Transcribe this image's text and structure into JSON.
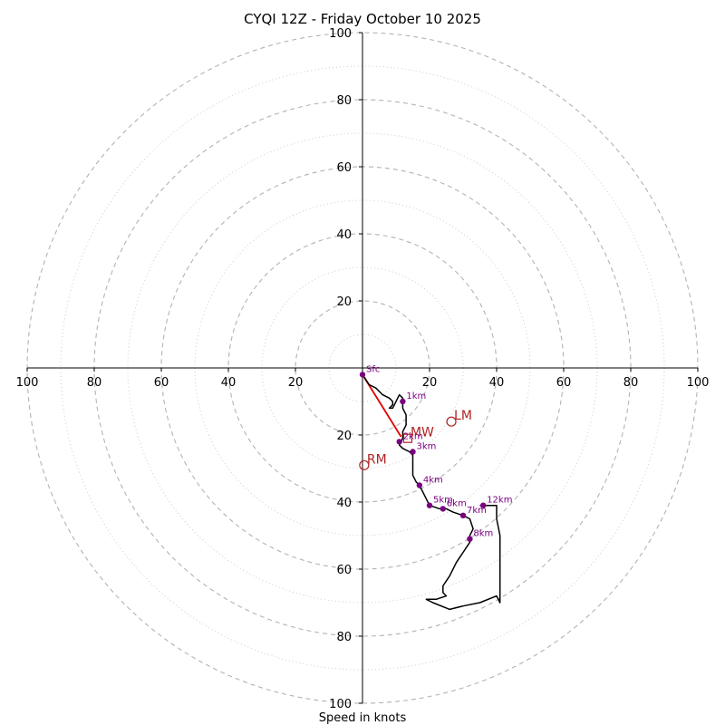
{
  "chart_data": {
    "type": "hodograph",
    "title": "CYQI 12Z - Friday October 10 2025",
    "xlabel": "Speed in knots",
    "ylabel": "",
    "units": "knots",
    "ring_major": [
      20,
      40,
      60,
      80,
      100
    ],
    "ring_minor": [
      10,
      30,
      50,
      70,
      90
    ],
    "axis_range": [
      -100,
      100
    ],
    "tick_labels": {
      "right": [
        "20",
        "40",
        "60",
        "80",
        "100"
      ],
      "left": [
        "100",
        "80",
        "60",
        "40",
        "20"
      ],
      "up": [
        "20",
        "40",
        "60",
        "80",
        "100"
      ],
      "down": [
        "20",
        "40",
        "60",
        "80",
        "100"
      ]
    },
    "grid": true,
    "colors": {
      "profile": "#000000",
      "height_marker": "#7a0080",
      "motion": "#b22222",
      "shear_vector": "#e00000",
      "ring": "#b3b3b3"
    },
    "profile_uv": [
      [
        0,
        -2
      ],
      [
        2,
        -5
      ],
      [
        4,
        -6
      ],
      [
        6,
        -8
      ],
      [
        8,
        -9
      ],
      [
        9,
        -10
      ],
      [
        9,
        -11
      ],
      [
        8,
        -12
      ],
      [
        9,
        -12
      ],
      [
        10,
        -10
      ],
      [
        11,
        -8
      ],
      [
        12,
        -9
      ],
      [
        12,
        -10
      ],
      [
        12,
        -12
      ],
      [
        13,
        -14
      ],
      [
        13,
        -17
      ],
      [
        12,
        -19
      ],
      [
        12,
        -21
      ],
      [
        11,
        -23
      ],
      [
        12,
        -24
      ],
      [
        14,
        -25
      ],
      [
        15,
        -26
      ],
      [
        15,
        -30
      ],
      [
        15,
        -32
      ],
      [
        16,
        -34
      ],
      [
        17,
        -35
      ],
      [
        18,
        -37
      ],
      [
        19,
        -39
      ],
      [
        20,
        -41
      ],
      [
        23,
        -42
      ],
      [
        25,
        -42
      ],
      [
        27,
        -43
      ],
      [
        30,
        -44
      ],
      [
        32,
        -45
      ],
      [
        33,
        -48
      ],
      [
        32,
        -50
      ],
      [
        32,
        -52
      ],
      [
        30,
        -55
      ],
      [
        28,
        -58
      ],
      [
        26,
        -62
      ],
      [
        24,
        -65
      ],
      [
        24,
        -67
      ],
      [
        25,
        -68
      ],
      [
        22,
        -69
      ],
      [
        19,
        -69
      ],
      [
        21,
        -70
      ],
      [
        26,
        -72
      ],
      [
        30,
        -71
      ],
      [
        35,
        -70
      ],
      [
        40,
        -68
      ],
      [
        41,
        -70
      ],
      [
        41,
        -65
      ],
      [
        41,
        -60
      ],
      [
        41,
        -56
      ],
      [
        41,
        -50
      ],
      [
        40,
        -45
      ],
      [
        40,
        -41
      ],
      [
        35,
        -41
      ]
    ],
    "height_markers": [
      {
        "label": "Sfc",
        "u": 0,
        "v": -2
      },
      {
        "label": "1km",
        "u": 12,
        "v": -10
      },
      {
        "label": "2km",
        "u": 11,
        "v": -22
      },
      {
        "label": "3km",
        "u": 15,
        "v": -25
      },
      {
        "label": "4km",
        "u": 17,
        "v": -35
      },
      {
        "label": "5km",
        "u": 20,
        "v": -41
      },
      {
        "label": "6km",
        "u": 24,
        "v": -42
      },
      {
        "label": "7km",
        "u": 30,
        "v": -44
      },
      {
        "label": "8km",
        "u": 32,
        "v": -51
      },
      {
        "label": "12km",
        "u": 36,
        "v": -41
      }
    ],
    "storm_motion": [
      {
        "label": "LM",
        "u": 26.5,
        "v": -16,
        "marker": "circle"
      },
      {
        "label": "RM",
        "u": 0.5,
        "v": -29,
        "marker": "circle"
      },
      {
        "label": "MW",
        "u": 13.5,
        "v": -21,
        "marker": "square"
      }
    ],
    "shear_vector": {
      "from": [
        0,
        -2
      ],
      "to": [
        11.5,
        -20.5
      ]
    }
  }
}
